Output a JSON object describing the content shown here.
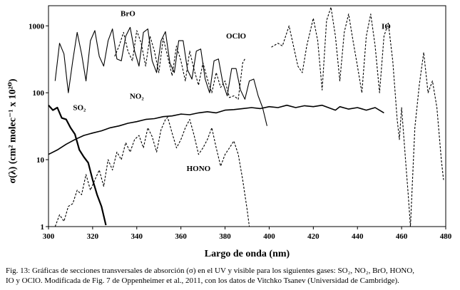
{
  "figure": {
    "caption_line1": "Fig. 13:  Gráficas de secciones transversales de absorción (σ) en el UV y visible para los siguientes gases: SO₂, NO₂, BrO, HONO,",
    "caption_line2": "IO y OClO.  Modificada de Fig. 7 de Oppenheimer et al., 2011,  con los datos de Vitchko Tsanev (Universidad de Cambridge)."
  },
  "chart_data": {
    "type": "line",
    "title": "",
    "xlabel": "Largo de onda (nm)",
    "ylabel": "σ(λ) (cm² molec⁻¹ x 10²⁰)",
    "xlim": [
      300,
      480
    ],
    "ylim": [
      1,
      2000
    ],
    "yscale": "log",
    "x_ticks": [
      "300",
      "320",
      "340",
      "360",
      "380",
      "400",
      "420",
      "440",
      "460",
      "480"
    ],
    "y_ticks": [
      "1",
      "10",
      "100",
      "1000"
    ],
    "grid": false,
    "legend": "none",
    "series": [
      {
        "name": "SO₂",
        "style": "solid",
        "width": 2.2,
        "points": [
          [
            300,
            65
          ],
          [
            302,
            55
          ],
          [
            304,
            60
          ],
          [
            306,
            42
          ],
          [
            308,
            40
          ],
          [
            310,
            30
          ],
          [
            312,
            24
          ],
          [
            314,
            14
          ],
          [
            316,
            11
          ],
          [
            318,
            9
          ],
          [
            320,
            5
          ],
          [
            322,
            3
          ],
          [
            324,
            2
          ],
          [
            326,
            1.05
          ]
        ]
      },
      {
        "name": "NO₂",
        "style": "solid",
        "width": 1.6,
        "points": [
          [
            300,
            12
          ],
          [
            304,
            14
          ],
          [
            308,
            17
          ],
          [
            312,
            20
          ],
          [
            316,
            23
          ],
          [
            320,
            25
          ],
          [
            324,
            27
          ],
          [
            328,
            30
          ],
          [
            332,
            32
          ],
          [
            336,
            35
          ],
          [
            340,
            37
          ],
          [
            344,
            40
          ],
          [
            348,
            41
          ],
          [
            352,
            44
          ],
          [
            356,
            45
          ],
          [
            360,
            48
          ],
          [
            364,
            47
          ],
          [
            368,
            50
          ],
          [
            372,
            52
          ],
          [
            376,
            50
          ],
          [
            380,
            55
          ],
          [
            384,
            56
          ],
          [
            388,
            58
          ],
          [
            392,
            60
          ],
          [
            396,
            58
          ],
          [
            400,
            62
          ],
          [
            404,
            60
          ],
          [
            408,
            65
          ],
          [
            412,
            60
          ],
          [
            416,
            64
          ],
          [
            420,
            62
          ],
          [
            424,
            65
          ],
          [
            428,
            58
          ],
          [
            430,
            55
          ],
          [
            432,
            62
          ],
          [
            436,
            57
          ],
          [
            440,
            60
          ],
          [
            444,
            55
          ],
          [
            448,
            60
          ],
          [
            452,
            50
          ]
        ]
      },
      {
        "name": "BrO",
        "style": "solid",
        "width": 1.1,
        "points": [
          [
            303,
            150
          ],
          [
            305,
            550
          ],
          [
            307,
            380
          ],
          [
            309,
            100
          ],
          [
            311,
            300
          ],
          [
            313,
            800
          ],
          [
            315,
            380
          ],
          [
            317,
            150
          ],
          [
            319,
            600
          ],
          [
            321,
            850
          ],
          [
            323,
            350
          ],
          [
            325,
            250
          ],
          [
            327,
            600
          ],
          [
            329,
            900
          ],
          [
            331,
            320
          ],
          [
            333,
            300
          ],
          [
            335,
            700
          ],
          [
            337,
            950
          ],
          [
            339,
            420
          ],
          [
            341,
            250
          ],
          [
            343,
            800
          ],
          [
            345,
            900
          ],
          [
            347,
            300
          ],
          [
            349,
            200
          ],
          [
            351,
            600
          ],
          [
            353,
            820
          ],
          [
            355,
            280
          ],
          [
            357,
            200
          ],
          [
            359,
            600
          ],
          [
            361,
            600
          ],
          [
            363,
            220
          ],
          [
            365,
            160
          ],
          [
            367,
            420
          ],
          [
            369,
            450
          ],
          [
            371,
            160
          ],
          [
            373,
            100
          ],
          [
            375,
            300
          ],
          [
            377,
            320
          ],
          [
            379,
            140
          ],
          [
            381,
            90
          ],
          [
            383,
            230
          ],
          [
            385,
            230
          ],
          [
            387,
            110
          ],
          [
            389,
            80
          ],
          [
            391,
            150
          ],
          [
            393,
            160
          ],
          [
            395,
            90
          ],
          [
            397,
            60
          ],
          [
            399,
            32
          ]
        ]
      },
      {
        "name": "OClO",
        "style": "dashed",
        "width": 1.1,
        "points": [
          [
            330,
            350
          ],
          [
            332,
            500
          ],
          [
            334,
            800
          ],
          [
            336,
            420
          ],
          [
            338,
            300
          ],
          [
            340,
            850
          ],
          [
            342,
            550
          ],
          [
            344,
            250
          ],
          [
            346,
            700
          ],
          [
            348,
            420
          ],
          [
            350,
            200
          ],
          [
            352,
            650
          ],
          [
            354,
            350
          ],
          [
            356,
            180
          ],
          [
            358,
            500
          ],
          [
            360,
            300
          ],
          [
            362,
            150
          ],
          [
            364,
            420
          ],
          [
            366,
            220
          ],
          [
            368,
            130
          ],
          [
            370,
            280
          ],
          [
            372,
            160
          ],
          [
            374,
            100
          ],
          [
            376,
            200
          ],
          [
            378,
            120
          ],
          [
            380,
            150
          ],
          [
            382,
            85
          ],
          [
            384,
            90
          ],
          [
            386,
            80
          ],
          [
            388,
            280
          ],
          [
            389,
            320
          ]
        ]
      },
      {
        "name": "HONO",
        "style": "dashed",
        "width": 1.1,
        "points": [
          [
            303,
            1
          ],
          [
            305,
            1.5
          ],
          [
            307,
            1.2
          ],
          [
            309,
            2
          ],
          [
            311,
            2.2
          ],
          [
            313,
            3.5
          ],
          [
            315,
            3
          ],
          [
            317,
            6
          ],
          [
            319,
            3.5
          ],
          [
            321,
            5
          ],
          [
            323,
            7
          ],
          [
            325,
            4
          ],
          [
            327,
            10
          ],
          [
            329,
            7
          ],
          [
            331,
            13
          ],
          [
            333,
            10
          ],
          [
            335,
            18
          ],
          [
            337,
            13
          ],
          [
            339,
            20
          ],
          [
            341,
            23
          ],
          [
            343,
            15
          ],
          [
            345,
            30
          ],
          [
            347,
            22
          ],
          [
            349,
            13
          ],
          [
            351,
            28
          ],
          [
            353,
            40
          ],
          [
            354,
            43
          ],
          [
            356,
            25
          ],
          [
            358,
            15
          ],
          [
            360,
            20
          ],
          [
            362,
            30
          ],
          [
            364,
            40
          ],
          [
            366,
            23
          ],
          [
            368,
            12
          ],
          [
            370,
            15
          ],
          [
            372,
            20
          ],
          [
            374,
            30
          ],
          [
            376,
            15
          ],
          [
            378,
            8
          ],
          [
            380,
            12
          ],
          [
            382,
            15
          ],
          [
            384,
            19
          ],
          [
            386,
            12
          ],
          [
            388,
            5
          ],
          [
            390,
            1.8
          ],
          [
            391,
            1
          ]
        ]
      },
      {
        "name": "IO",
        "style": "dashed",
        "width": 1.1,
        "points": [
          [
            401,
            480
          ],
          [
            404,
            550
          ],
          [
            406,
            500
          ],
          [
            409,
            1000
          ],
          [
            411,
            500
          ],
          [
            413,
            250
          ],
          [
            415,
            200
          ],
          [
            417,
            500
          ],
          [
            420,
            1300
          ],
          [
            422,
            600
          ],
          [
            424,
            110
          ],
          [
            426,
            1200
          ],
          [
            428,
            1900
          ],
          [
            430,
            700
          ],
          [
            432,
            150
          ],
          [
            434,
            800
          ],
          [
            436,
            1500
          ],
          [
            438,
            600
          ],
          [
            440,
            250
          ],
          [
            442,
            100
          ],
          [
            444,
            700
          ],
          [
            446,
            1500
          ],
          [
            448,
            500
          ],
          [
            450,
            100
          ],
          [
            452,
            700
          ],
          [
            454,
            1100
          ],
          [
            456,
            300
          ],
          [
            458,
            40
          ],
          [
            459,
            20
          ],
          [
            460,
            60
          ],
          [
            462,
            8
          ],
          [
            463,
            3
          ],
          [
            464,
            1
          ],
          [
            466,
            30
          ],
          [
            468,
            130
          ],
          [
            470,
            400
          ],
          [
            472,
            100
          ],
          [
            474,
            150
          ],
          [
            476,
            60
          ],
          [
            478,
            10
          ],
          [
            479,
            5
          ]
        ]
      }
    ],
    "annotations": [
      {
        "text": "BrO",
        "x": 336,
        "y": 1400
      },
      {
        "text": "OClO",
        "x": 385,
        "y": 650
      },
      {
        "text": "NO₂",
        "x": 340,
        "y": 82
      },
      {
        "text": "SO₂",
        "x": 314,
        "y": 55
      },
      {
        "text": "HONO",
        "x": 368,
        "y": 6.8
      },
      {
        "text": "IO",
        "x": 453,
        "y": 900
      }
    ]
  }
}
